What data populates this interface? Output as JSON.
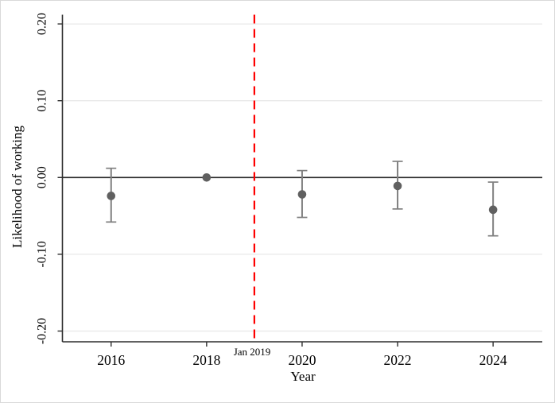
{
  "chart_data": {
    "type": "scatter",
    "subtype": "coefficient-plot-with-ci",
    "title": "",
    "xlabel": "Year",
    "ylabel": "Likelihood of working",
    "xlim": [
      2014.98,
      2025.03
    ],
    "ylim": [
      -0.214,
      0.212
    ],
    "xticks": [
      2016,
      2018,
      2020,
      2022,
      2024
    ],
    "xtick_labels": [
      "2016",
      "2018",
      "2020",
      "2022",
      "2024"
    ],
    "yticks": [
      -0.2,
      -0.1,
      0.0,
      0.1,
      0.2
    ],
    "ytick_labels": [
      "-0.20",
      "-0.10",
      "0.00",
      "0.10",
      "0.20"
    ],
    "grid": true,
    "legend": "none",
    "zero_line_y": 0,
    "reference_line": {
      "x": 2019,
      "label": "Jan 2019",
      "style": "dashed"
    },
    "series": [
      {
        "name": "estimate",
        "points": [
          {
            "x": 2016,
            "y": -0.024,
            "ci_low": -0.058,
            "ci_high": 0.012
          },
          {
            "x": 2018,
            "y": 0.0,
            "ci_low": 0.0,
            "ci_high": 0.0
          },
          {
            "x": 2020,
            "y": -0.022,
            "ci_low": -0.052,
            "ci_high": 0.009
          },
          {
            "x": 2022,
            "y": -0.011,
            "ci_low": -0.041,
            "ci_high": 0.021
          },
          {
            "x": 2024,
            "y": -0.042,
            "ci_low": -0.076,
            "ci_high": -0.006
          }
        ]
      }
    ],
    "colors": {
      "marker": "#606060",
      "ci": "#808080",
      "grid": "#e9e9e9",
      "axis": "#2e2e2e",
      "zero_line": "#2b2b2b",
      "reference": "#fe0000",
      "text": "#000000"
    }
  }
}
